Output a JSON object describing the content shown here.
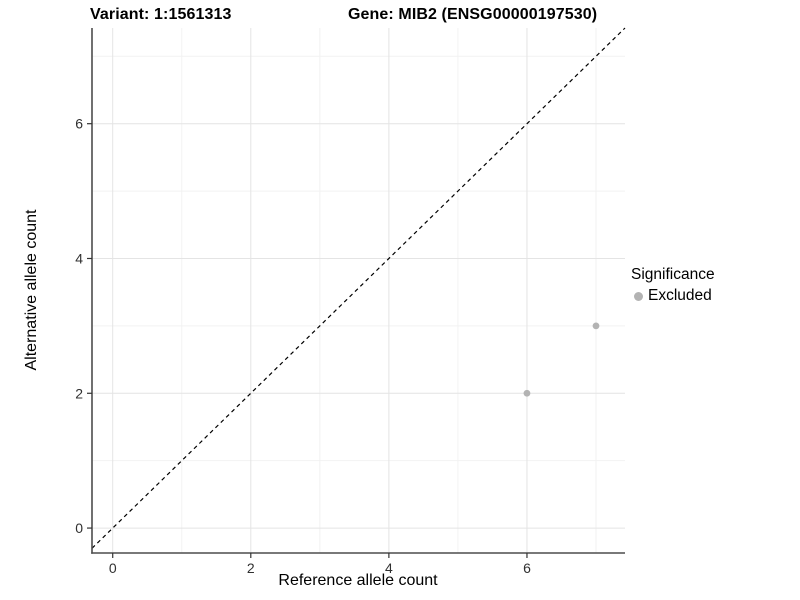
{
  "chart_data": {
    "type": "scatter",
    "title_left": "Variant: 1:1561313",
    "title_right": "Gene: MIB2 (ENSG00000197530)",
    "xlabel": "Reference allele count",
    "ylabel": "Alternative allele count",
    "xlim": [
      -0.3,
      7.42
    ],
    "ylim": [
      -0.37,
      7.42
    ],
    "x_ticks": [
      0,
      2,
      4,
      6
    ],
    "y_ticks": [
      0,
      2,
      4,
      6
    ],
    "x_minor_gridlines": [
      1,
      3,
      5,
      7
    ],
    "y_minor_gridlines": [
      1,
      3,
      5,
      7
    ],
    "grid": true,
    "legend_position": "right",
    "legend": {
      "title": "Significance",
      "items": [
        {
          "label": "Excluded",
          "color": "#b3b3b3"
        }
      ]
    },
    "series": [
      {
        "name": "Excluded",
        "color": "#b3b3b3",
        "points": [
          {
            "x": 6,
            "y": 2
          },
          {
            "x": 7,
            "y": 3
          }
        ]
      }
    ],
    "diagonal_line": {
      "equation": "y = x",
      "style": "dashed",
      "color": "#000000"
    },
    "colors": {
      "point": "#b3b3b3",
      "diagonal": "#000000",
      "axis_line": "#4d4d4d",
      "grid_major": "#e4e4e4",
      "grid_minor": "#f2f2f2",
      "tick_mark": "#333333",
      "tick_label": "#303030",
      "background": "#ffffff"
    }
  }
}
